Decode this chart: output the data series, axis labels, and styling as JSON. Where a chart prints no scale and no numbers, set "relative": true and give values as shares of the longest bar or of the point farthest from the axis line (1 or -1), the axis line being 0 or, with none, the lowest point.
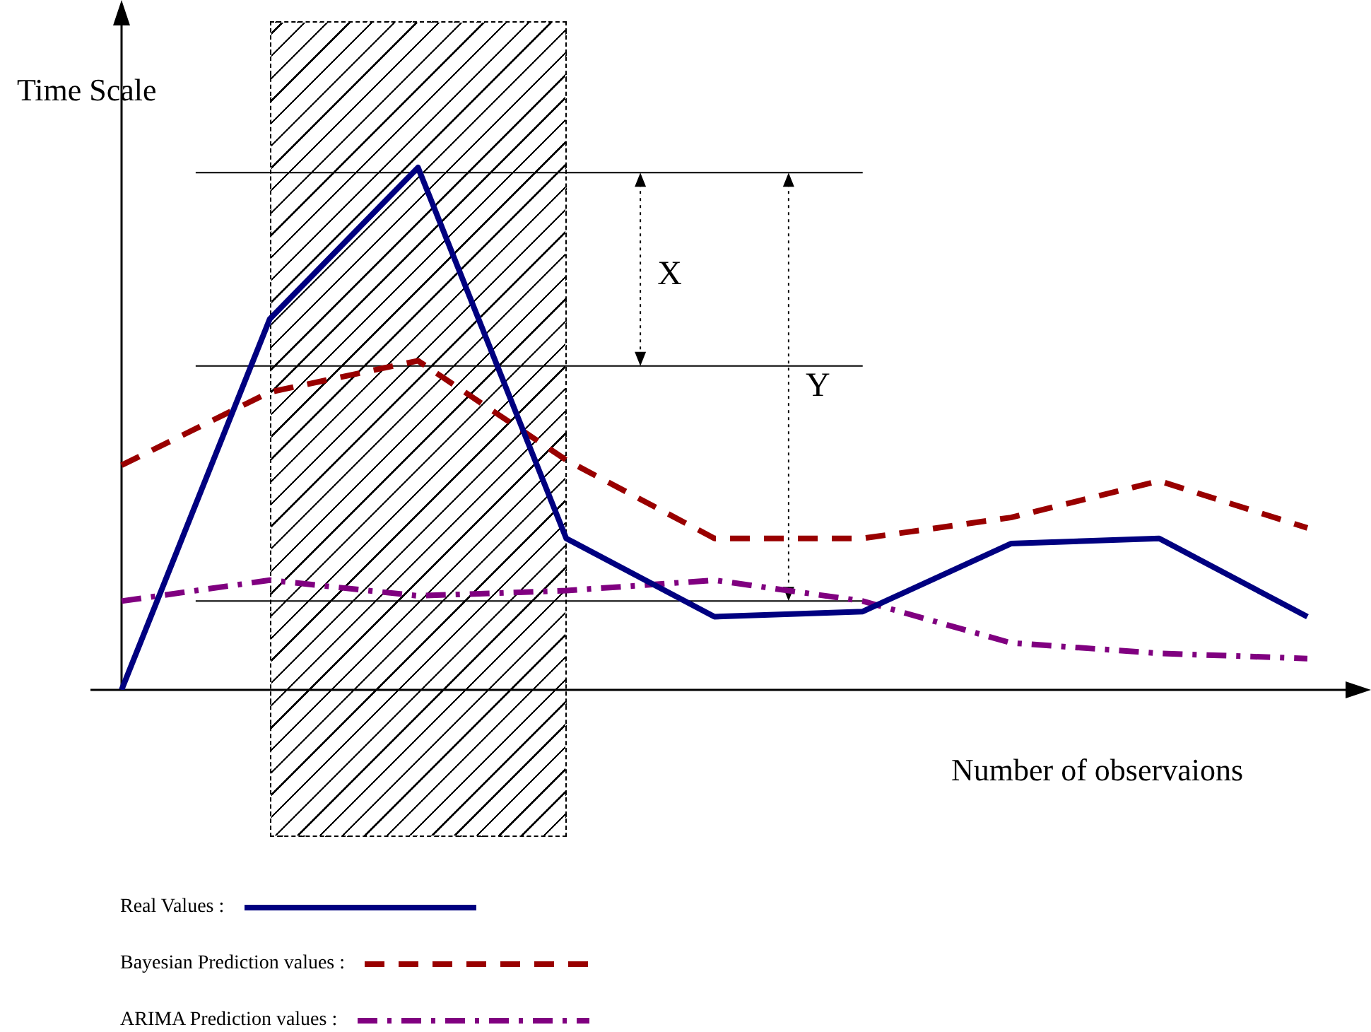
{
  "chart_data": {
    "type": "line",
    "relative": true,
    "ylabel": "Time Scale",
    "xlabel": "Number of observaions",
    "categories": [
      null,
      null,
      null,
      null,
      null,
      null,
      null,
      null,
      null
    ],
    "series": [
      {
        "name": "Real Values :",
        "color": "#000080",
        "line_style": "solid",
        "values": [
          0,
          0.71,
          1,
          0.29,
          0.14,
          0.15,
          0.28,
          0.29,
          0.14
        ]
      },
      {
        "name": "Bayesian Prediction values :",
        "color": "#990000",
        "line_style": "dashed",
        "values": [
          0.43,
          0.57,
          0.63,
          0.44,
          0.29,
          0.29,
          0.33,
          0.4,
          0.31
        ]
      },
      {
        "name": "ARIMA Prediction values :",
        "color": "#800080",
        "line_style": "dashdot",
        "values": [
          0.17,
          0.21,
          0.18,
          0.19,
          0.21,
          0.17,
          0.09,
          0.07,
          0.06
        ]
      }
    ],
    "ref_lines": [
      {
        "axis": "y",
        "value": 0.99,
        "color": "#000000"
      },
      {
        "axis": "y",
        "value": 0.62,
        "color": "#000000"
      },
      {
        "axis": "y",
        "value": 0.17,
        "color": "#000000"
      }
    ],
    "annotations": [
      "X",
      "Y"
    ],
    "legend": "bottom",
    "marker": "none",
    "grid": false
  }
}
